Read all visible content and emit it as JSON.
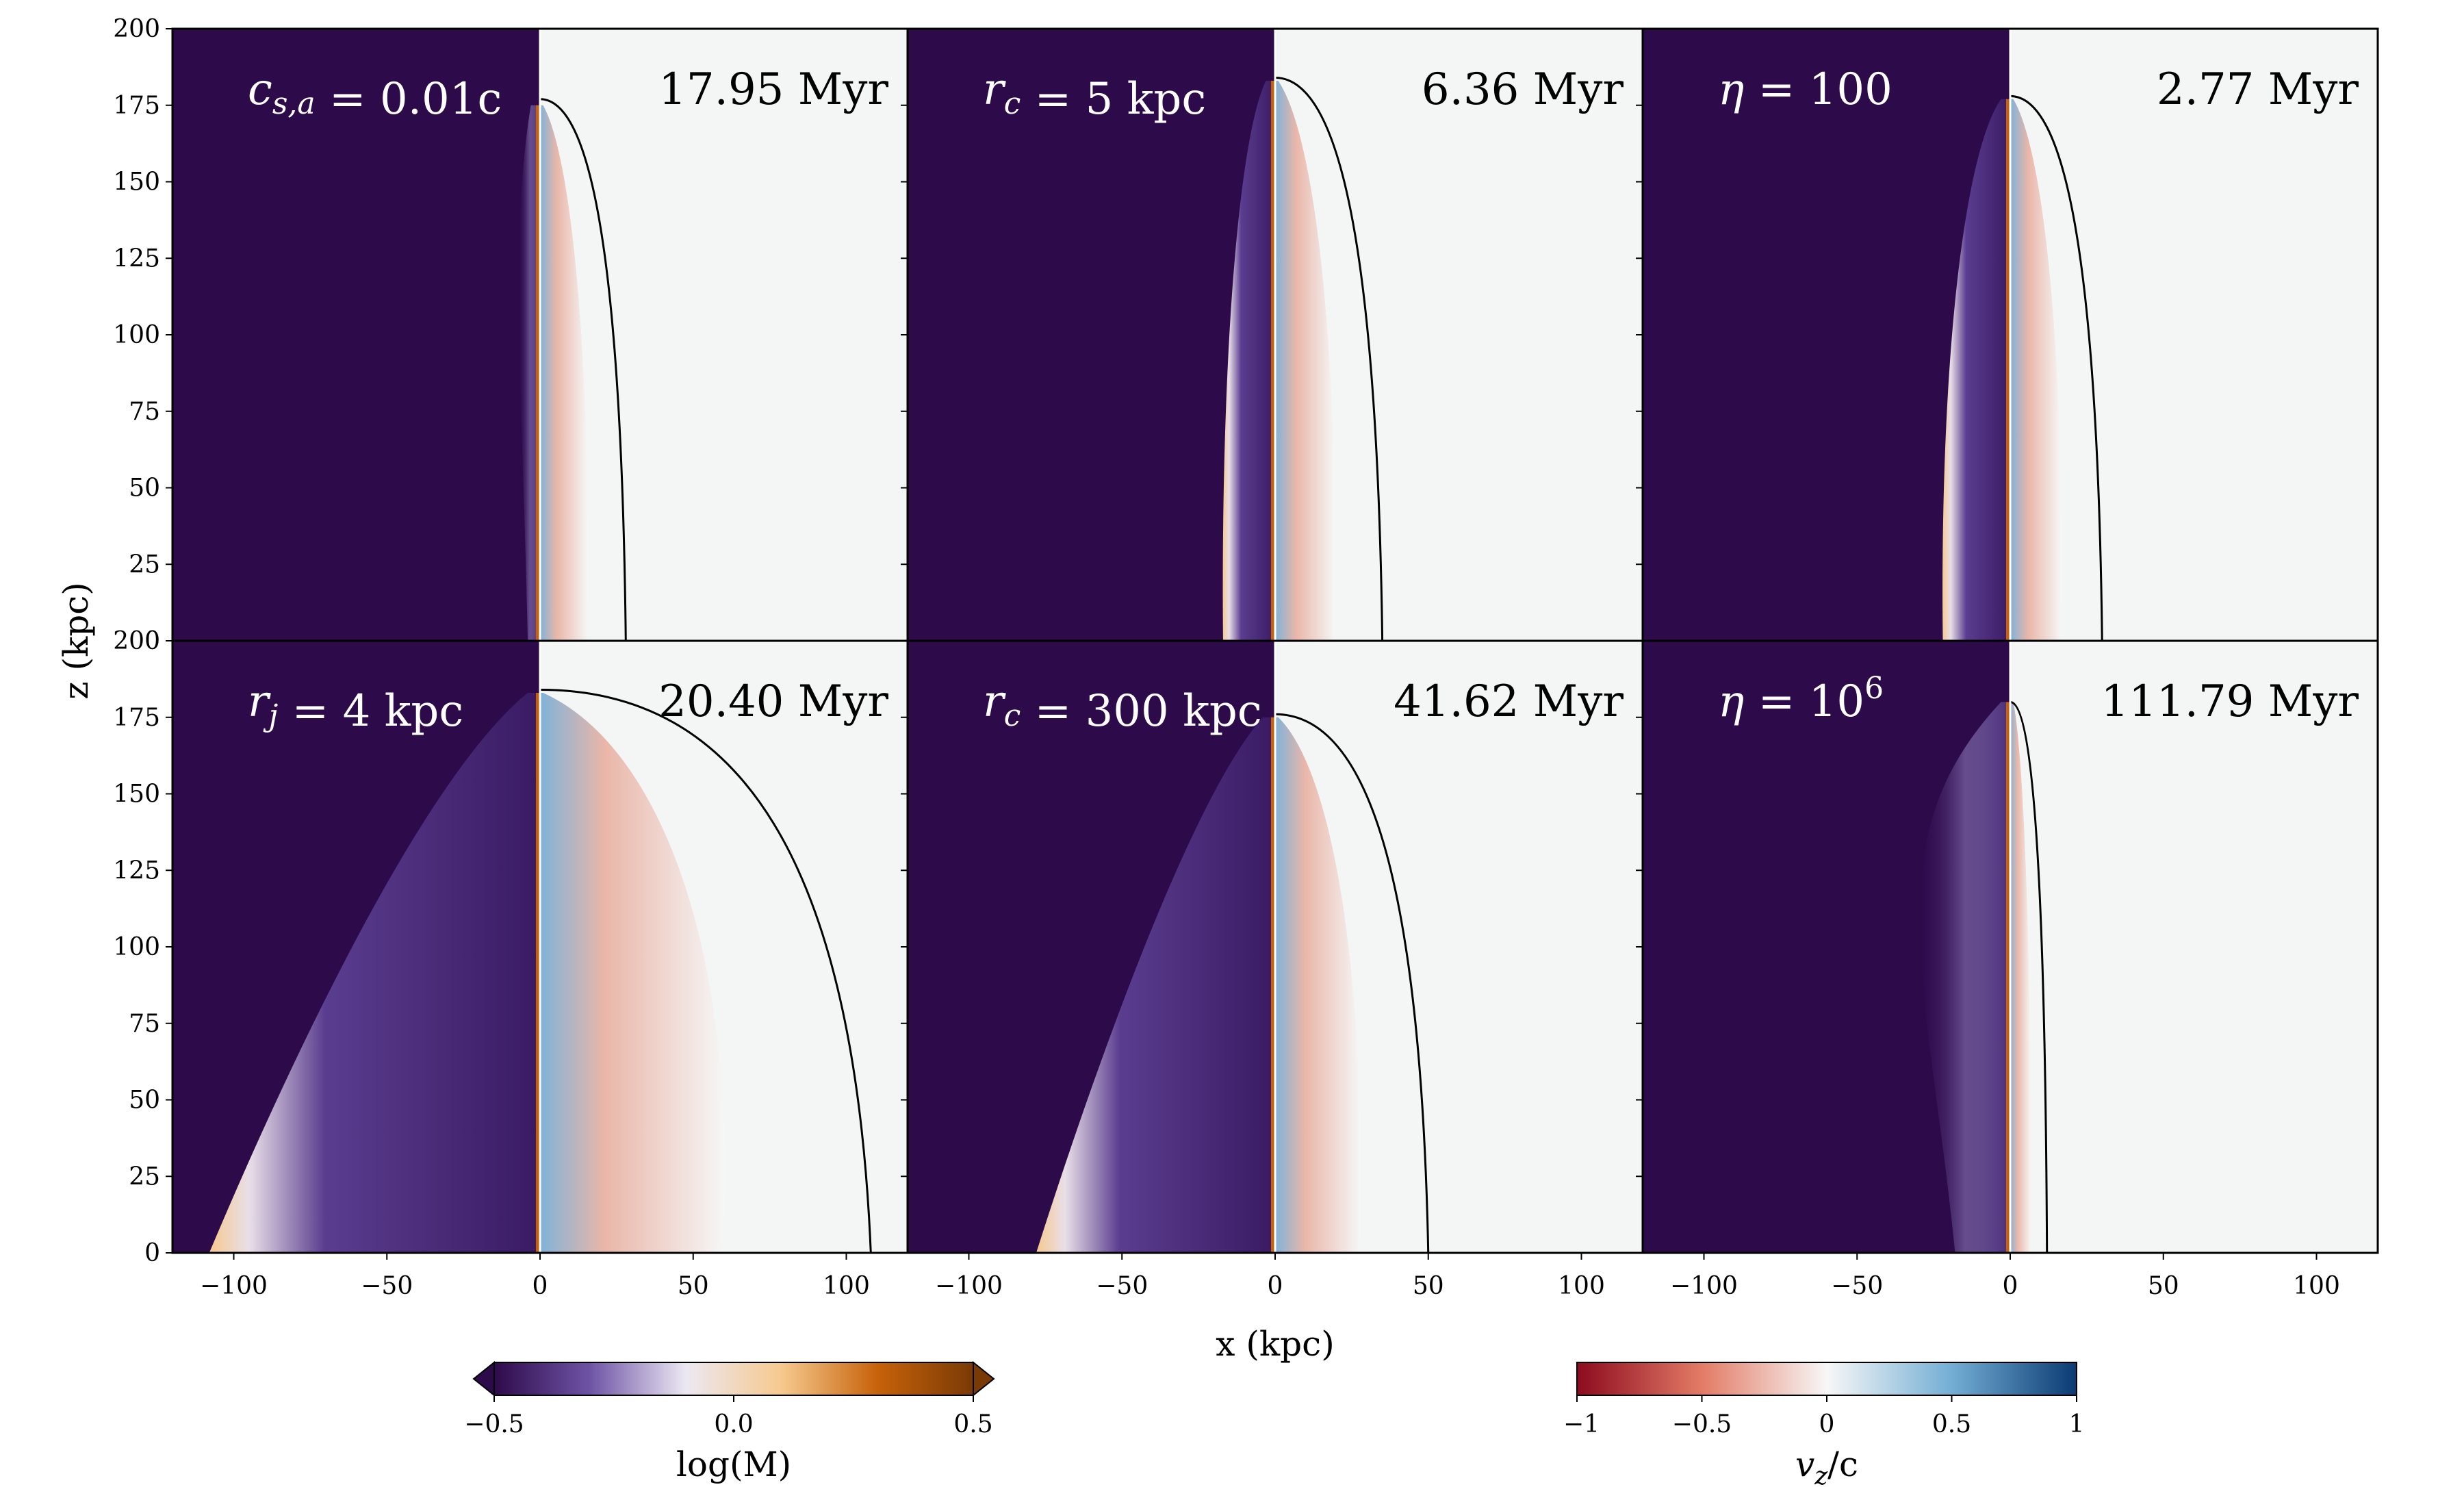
{
  "figure": {
    "x_axis_label": "x (kpc)",
    "y_axis_label": "z (kpc)",
    "x_ticks": [
      -100,
      -50,
      0,
      50,
      100
    ],
    "y_ticks": [
      0,
      25,
      50,
      75,
      100,
      125,
      150,
      175,
      200
    ],
    "x_range": [
      -120,
      120
    ],
    "y_range": [
      0,
      200
    ],
    "panels": [
      {
        "label": "c_{s,a} = 0.01c",
        "label_main": "c",
        "label_sub": "s,a",
        "label_rest": " = 0.01c",
        "time": "17.95 Myr",
        "head_z": 175,
        "cocoon_halfwidth": 10,
        "shock_halfwidth": 28,
        "shock_head": 177,
        "cocoon_style": "faint"
      },
      {
        "label": "r_c = 5 kpc",
        "label_main": "r",
        "label_sub": "c",
        "label_rest": " = 5 kpc",
        "time": "6.36 Myr",
        "head_z": 183,
        "cocoon_halfwidth": 17,
        "shock_halfwidth": 35,
        "shock_head": 184,
        "cocoon_style": "narrow"
      },
      {
        "label": "η = 100",
        "label_main": "η",
        "label_sub": "",
        "label_rest": " = 100",
        "time": "2.77 Myr",
        "head_z": 177,
        "cocoon_halfwidth": 22,
        "shock_halfwidth": 30,
        "shock_head": 178,
        "cocoon_style": "narrow"
      },
      {
        "label": "r_j = 4 kpc",
        "label_main": "r",
        "label_sub": "j",
        "label_rest": " = 4 kpc",
        "time": "20.40 Myr",
        "head_z": 183,
        "cocoon_halfwidth": 108,
        "shock_halfwidth": 108,
        "shock_head": 184,
        "cocoon_style": "wide"
      },
      {
        "label": "r_c = 300 kpc",
        "label_main": "r",
        "label_sub": "c",
        "label_rest": " = 300 kpc",
        "time": "41.62 Myr",
        "head_z": 175,
        "cocoon_halfwidth": 78,
        "shock_halfwidth": 50,
        "shock_head": 176,
        "cocoon_style": "wide"
      },
      {
        "label": "η = 10^6",
        "label_main": "η",
        "label_sub": "",
        "label_sup": "6",
        "label_rest": " = 10",
        "time": "111.79 Myr",
        "head_z": 180,
        "cocoon_halfwidth": 45,
        "shock_halfwidth": 12,
        "shock_head": 180,
        "cocoon_style": "faint"
      }
    ]
  },
  "colorbar_mach": {
    "label": "log(M)",
    "ticks": [
      "−0.5",
      "0.0",
      "0.5"
    ],
    "tick_values": [
      -0.5,
      0.0,
      0.5
    ],
    "range": [
      -0.5,
      0.5
    ],
    "colors": [
      "#2d0a4a",
      "#6f54a6",
      "#ece8f2",
      "#f6c98e",
      "#c7620a",
      "#7a3a05"
    ]
  },
  "colorbar_vz": {
    "label": "v_z/c",
    "label_main": "v",
    "label_sub": "z",
    "label_rest": "/c",
    "ticks": [
      "−1",
      "−0.5",
      "0",
      "0.5",
      "1"
    ],
    "tick_values": [
      -1,
      -0.5,
      0,
      0.5,
      1
    ],
    "range": [
      -1,
      1
    ],
    "colors": [
      "#8c0a1e",
      "#e37b66",
      "#f7f7f7",
      "#73aed4",
      "#0b3a73"
    ]
  }
}
